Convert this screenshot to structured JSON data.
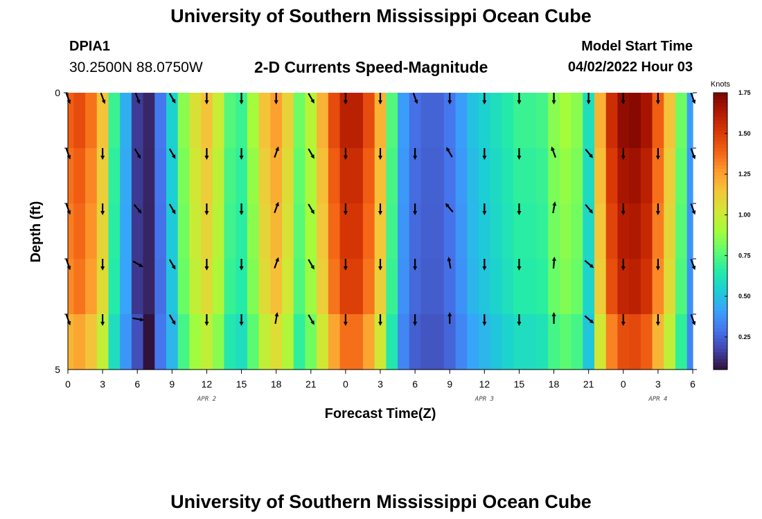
{
  "header": {
    "title": "University of Southern Mississippi Ocean Cube",
    "station": "DPIA1",
    "coords": "30.2500N  88.0750W",
    "subtitle": "2-D Currents Speed-Magnitude",
    "model_start_label": "Model Start Time",
    "model_start_value": "04/02/2022 Hour 03"
  },
  "footer": {
    "title": "University of Southern Mississippi Ocean Cube"
  },
  "chart_data": {
    "type": "heatmap",
    "title": "2-D Currents Speed-Magnitude",
    "xlabel": "Forecast Time(Z)",
    "ylabel": "Depth (ft)",
    "x_hours": [
      0,
      1,
      2,
      3,
      4,
      5,
      6,
      7,
      8,
      9,
      10,
      11,
      12,
      13,
      14,
      15,
      16,
      17,
      18,
      19,
      20,
      21,
      22,
      23,
      24,
      25,
      26,
      27,
      28,
      29,
      30,
      31,
      32,
      33,
      34,
      35,
      36,
      37,
      38,
      39,
      40,
      41,
      42,
      43,
      44,
      45,
      46,
      47,
      48,
      49,
      50,
      51,
      52,
      53,
      54
    ],
    "xtick_labels": [
      "0",
      "3",
      "6",
      "9",
      "12",
      "15",
      "18",
      "21",
      "0",
      "3",
      "6",
      "9",
      "12",
      "15",
      "18",
      "21",
      "0",
      "3",
      "6"
    ],
    "date_labels": [
      {
        "text": "APR 2",
        "hour": 12
      },
      {
        "text": "APR 3",
        "hour": 36
      },
      {
        "text": "APR 4",
        "hour": 51
      }
    ],
    "ylim": [
      0,
      5
    ],
    "ytick_labels": [
      "0",
      "5"
    ],
    "depth_rows": 5,
    "speed_profile": [
      1.4,
      1.45,
      1.35,
      1.15,
      0.7,
      0.45,
      0.15,
      0.1,
      0.3,
      0.55,
      0.85,
      1.05,
      1.15,
      1.0,
      0.75,
      0.7,
      0.9,
      1.15,
      1.25,
      1.1,
      0.8,
      0.95,
      1.2,
      1.45,
      1.6,
      1.6,
      1.45,
      1.2,
      0.75,
      0.4,
      0.28,
      0.25,
      0.25,
      0.3,
      0.4,
      0.5,
      0.55,
      0.6,
      0.65,
      0.7,
      0.7,
      0.72,
      0.85,
      0.9,
      0.85,
      0.6,
      1.2,
      1.55,
      1.7,
      1.72,
      1.65,
      1.4,
      1.15,
      0.8,
      0.4
    ],
    "depth_factors": [
      1.0,
      0.97,
      0.95,
      0.93,
      0.85
    ],
    "bottom_row_overrides": {
      "6": 0.2,
      "7": 0.05,
      "8": 0.3
    },
    "vector_hours": [
      0,
      3,
      6,
      9,
      12,
      15,
      18,
      21,
      24,
      27,
      30,
      33,
      36,
      39,
      42,
      45,
      48,
      51,
      54
    ],
    "vector_directions_deg": [
      [
        160,
        160,
        160,
        150,
        180,
        180,
        180,
        150,
        180,
        180,
        160,
        180,
        180,
        180,
        180,
        180,
        180,
        180,
        160
      ],
      [
        160,
        180,
        150,
        150,
        180,
        180,
        20,
        150,
        180,
        180,
        180,
        330,
        180,
        180,
        340,
        140,
        180,
        180,
        160
      ],
      [
        160,
        180,
        140,
        150,
        180,
        180,
        20,
        150,
        180,
        180,
        180,
        320,
        180,
        180,
        10,
        140,
        180,
        180,
        160
      ],
      [
        160,
        180,
        120,
        150,
        180,
        180,
        20,
        150,
        180,
        180,
        180,
        350,
        180,
        180,
        5,
        130,
        180,
        180,
        160
      ],
      [
        160,
        180,
        100,
        150,
        180,
        180,
        10,
        150,
        180,
        180,
        180,
        0,
        180,
        180,
        0,
        130,
        180,
        180,
        160
      ]
    ],
    "colorbar": {
      "unit": "Knots",
      "min": 0.05,
      "max": 1.75,
      "tick_labels": [
        "1.75",
        "1.50",
        "1.25",
        "1.00",
        "0.75",
        "0.50",
        "0.25"
      ],
      "tick_values": [
        1.75,
        1.5,
        1.25,
        1.0,
        0.75,
        0.5,
        0.25
      ],
      "colors": [
        "#30123b",
        "#4145ab",
        "#4675ed",
        "#39a2fc",
        "#1bcfd4",
        "#24eca6",
        "#61fc6c",
        "#a4fc3b",
        "#d1e834",
        "#f3c63a",
        "#fe9b2d",
        "#f36315",
        "#d93806",
        "#b11901",
        "#7a0402"
      ]
    }
  }
}
